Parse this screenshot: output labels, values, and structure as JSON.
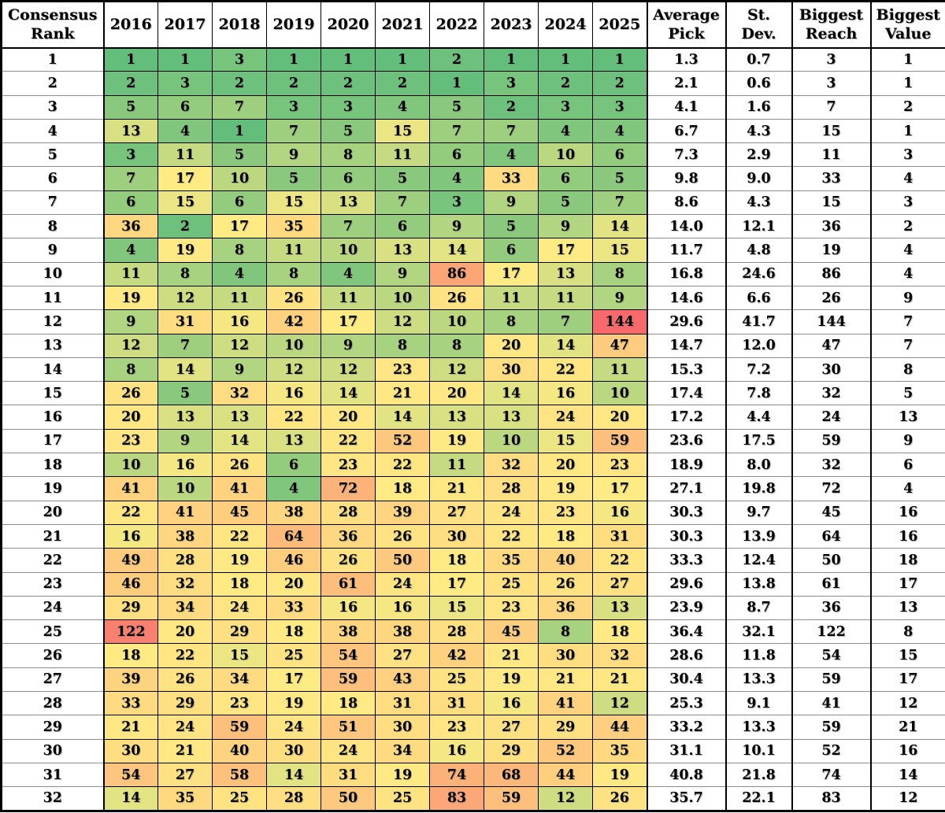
{
  "heatmap_colors": {
    "low_green": "#63BE7B",
    "mid_yellow": "#FFEB84",
    "high_red": "#F8696B",
    "grid_black": "#000000",
    "grid_gray": "#8d8d8d",
    "cell_text": "#000000",
    "plain_bg": "#ffffff"
  },
  "chart_data": {
    "type": "heatmap",
    "row_axis_header_lines": [
      "Consensus",
      "Rank"
    ],
    "columns": [
      "2016",
      "2017",
      "2018",
      "2019",
      "2020",
      "2021",
      "2022",
      "2023",
      "2024",
      "2025"
    ],
    "summary_column_header_lines": [
      [
        "Average",
        "Pick"
      ],
      [
        "St.",
        "Dev."
      ],
      [
        "Biggest",
        "Reach"
      ],
      [
        "Biggest",
        "Value"
      ]
    ],
    "consensus_ranks": [
      1,
      2,
      3,
      4,
      5,
      6,
      7,
      8,
      9,
      10,
      11,
      12,
      13,
      14,
      15,
      16,
      17,
      18,
      19,
      20,
      21,
      22,
      23,
      24,
      25,
      26,
      27,
      28,
      29,
      30,
      31,
      32
    ],
    "values": [
      [
        1,
        1,
        3,
        1,
        1,
        1,
        2,
        1,
        1,
        1
      ],
      [
        2,
        3,
        2,
        2,
        2,
        2,
        1,
        3,
        2,
        2
      ],
      [
        5,
        6,
        7,
        3,
        3,
        4,
        5,
        2,
        3,
        3
      ],
      [
        13,
        4,
        1,
        7,
        5,
        15,
        7,
        7,
        4,
        4
      ],
      [
        3,
        11,
        5,
        9,
        8,
        11,
        6,
        4,
        10,
        6
      ],
      [
        7,
        17,
        10,
        5,
        6,
        5,
        4,
        33,
        6,
        5
      ],
      [
        6,
        15,
        6,
        15,
        13,
        7,
        3,
        9,
        5,
        7
      ],
      [
        36,
        2,
        17,
        35,
        7,
        6,
        9,
        5,
        9,
        14
      ],
      [
        4,
        19,
        8,
        11,
        10,
        13,
        14,
        6,
        17,
        15
      ],
      [
        11,
        8,
        4,
        8,
        4,
        9,
        86,
        17,
        13,
        8
      ],
      [
        19,
        12,
        11,
        26,
        11,
        10,
        26,
        11,
        11,
        9
      ],
      [
        9,
        31,
        16,
        42,
        17,
        12,
        10,
        8,
        7,
        144
      ],
      [
        12,
        7,
        12,
        10,
        9,
        8,
        8,
        20,
        14,
        47
      ],
      [
        8,
        14,
        9,
        12,
        12,
        23,
        12,
        30,
        22,
        11
      ],
      [
        26,
        5,
        32,
        16,
        14,
        21,
        20,
        14,
        16,
        10
      ],
      [
        20,
        13,
        13,
        22,
        20,
        14,
        13,
        13,
        24,
        20
      ],
      [
        23,
        9,
        14,
        13,
        22,
        52,
        19,
        10,
        15,
        59
      ],
      [
        10,
        16,
        26,
        6,
        23,
        22,
        11,
        32,
        20,
        23
      ],
      [
        41,
        10,
        41,
        4,
        72,
        18,
        21,
        28,
        19,
        17
      ],
      [
        22,
        41,
        45,
        38,
        28,
        39,
        27,
        24,
        23,
        16
      ],
      [
        16,
        38,
        22,
        64,
        36,
        26,
        30,
        22,
        18,
        31
      ],
      [
        49,
        28,
        19,
        46,
        26,
        50,
        18,
        35,
        40,
        22
      ],
      [
        46,
        32,
        18,
        20,
        61,
        24,
        17,
        25,
        26,
        27
      ],
      [
        29,
        34,
        24,
        33,
        16,
        16,
        15,
        23,
        36,
        13
      ],
      [
        122,
        20,
        29,
        18,
        38,
        38,
        28,
        45,
        8,
        18
      ],
      [
        18,
        22,
        15,
        25,
        54,
        27,
        42,
        21,
        30,
        32
      ],
      [
        39,
        26,
        34,
        17,
        59,
        43,
        25,
        19,
        21,
        21
      ],
      [
        33,
        29,
        23,
        19,
        18,
        31,
        31,
        16,
        41,
        12
      ],
      [
        21,
        24,
        59,
        24,
        51,
        30,
        23,
        27,
        29,
        44
      ],
      [
        30,
        21,
        40,
        30,
        24,
        34,
        16,
        29,
        52,
        35
      ],
      [
        54,
        27,
        58,
        14,
        31,
        19,
        74,
        68,
        44,
        19
      ],
      [
        14,
        35,
        25,
        28,
        50,
        25,
        83,
        59,
        12,
        26
      ]
    ],
    "summary_values": [
      [
        "1.3",
        "0.7",
        "3",
        "1"
      ],
      [
        "2.1",
        "0.6",
        "3",
        "1"
      ],
      [
        "4.1",
        "1.6",
        "7",
        "2"
      ],
      [
        "6.7",
        "4.3",
        "15",
        "1"
      ],
      [
        "7.3",
        "2.9",
        "11",
        "3"
      ],
      [
        "9.8",
        "9.0",
        "33",
        "4"
      ],
      [
        "8.6",
        "4.3",
        "15",
        "3"
      ],
      [
        "14.0",
        "12.1",
        "36",
        "2"
      ],
      [
        "11.7",
        "4.8",
        "19",
        "4"
      ],
      [
        "16.8",
        "24.6",
        "86",
        "4"
      ],
      [
        "14.6",
        "6.6",
        "26",
        "9"
      ],
      [
        "29.6",
        "41.7",
        "144",
        "7"
      ],
      [
        "14.7",
        "12.0",
        "47",
        "7"
      ],
      [
        "15.3",
        "7.2",
        "30",
        "8"
      ],
      [
        "17.4",
        "7.8",
        "32",
        "5"
      ],
      [
        "17.2",
        "4.4",
        "24",
        "13"
      ],
      [
        "23.6",
        "17.5",
        "59",
        "9"
      ],
      [
        "18.9",
        "8.0",
        "32",
        "6"
      ],
      [
        "27.1",
        "19.8",
        "72",
        "4"
      ],
      [
        "30.3",
        "9.7",
        "45",
        "16"
      ],
      [
        "30.3",
        "13.9",
        "64",
        "16"
      ],
      [
        "33.3",
        "12.4",
        "50",
        "18"
      ],
      [
        "29.6",
        "13.8",
        "61",
        "17"
      ],
      [
        "23.9",
        "8.7",
        "36",
        "13"
      ],
      [
        "36.4",
        "32.1",
        "122",
        "8"
      ],
      [
        "28.6",
        "11.8",
        "54",
        "15"
      ],
      [
        "30.4",
        "13.3",
        "59",
        "17"
      ],
      [
        "25.3",
        "9.1",
        "41",
        "12"
      ],
      [
        "33.2",
        "13.3",
        "59",
        "21"
      ],
      [
        "31.1",
        "10.1",
        "52",
        "16"
      ],
      [
        "40.8",
        "21.8",
        "74",
        "14"
      ],
      [
        "35.7",
        "22.1",
        "83",
        "12"
      ]
    ]
  }
}
